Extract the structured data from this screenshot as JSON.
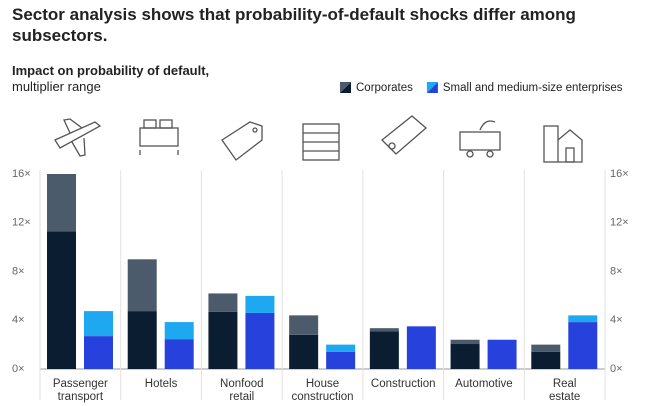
{
  "chart_data": {
    "type": "range_bar",
    "title": [
      "Sector analysis shows that probability-of-default shocks differ among",
      "subsectors."
    ],
    "subtitle": "Impact on probability of default,",
    "y_label": "multiplier range",
    "categories": [
      "Passenger transport",
      "Hotels",
      "Nonfood retail",
      "House construction",
      "Construction",
      "Automotive",
      "Real estate"
    ],
    "series": [
      {
        "name": "Corporates",
        "color": "#0b1d30",
        "high_color": "#4b5b6c",
        "low": [
          11.3,
          4.75,
          4.7,
          2.8,
          3.1,
          2.05,
          1.4
        ],
        "high": [
          16,
          9.0,
          6.2,
          4.4,
          3.35,
          2.4,
          2.0
        ]
      },
      {
        "name": "Small and medium-size enterprises",
        "color": "#2742dc",
        "high_color": "#1ea8f0",
        "low": [
          2.7,
          2.45,
          4.6,
          1.4,
          3.5,
          2.4,
          3.85
        ],
        "high": [
          4.75,
          3.85,
          6.0,
          2.0,
          3.5,
          2.4,
          4.4
        ]
      }
    ],
    "ylim": [
      0,
      16
    ],
    "yticks": [
      {
        "value": 0,
        "label": "0×"
      },
      {
        "value": 4,
        "label": "4×"
      },
      {
        "value": 8,
        "label": "8×"
      },
      {
        "value": 12,
        "label": "12×"
      },
      {
        "value": 16,
        "label": "16×"
      }
    ],
    "legend": "top-right"
  }
}
